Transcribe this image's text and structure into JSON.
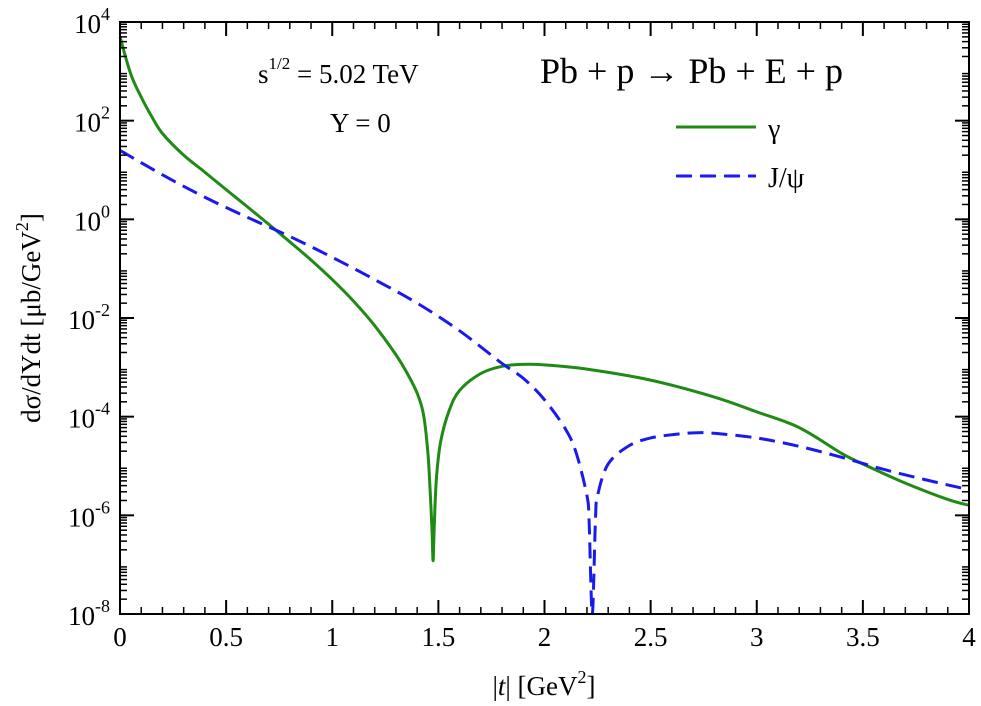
{
  "chart_data": {
    "type": "line",
    "ylog": true,
    "xlim": [
      0,
      4
    ],
    "ylim": [
      1e-08,
      10000.0
    ],
    "xticks": [
      {
        "v": 0,
        "label": "0"
      },
      {
        "v": 0.5,
        "label": "0.5"
      },
      {
        "v": 1,
        "label": "1"
      },
      {
        "v": 1.5,
        "label": "1.5"
      },
      {
        "v": 2,
        "label": "2"
      },
      {
        "v": 2.5,
        "label": "2.5"
      },
      {
        "v": 3,
        "label": "3"
      },
      {
        "v": 3.5,
        "label": "3.5"
      },
      {
        "v": 4,
        "label": "4"
      }
    ],
    "yticks": [
      {
        "exp": 4,
        "base": "10",
        "sup": "4"
      },
      {
        "exp": 2,
        "base": "10",
        "sup": "2"
      },
      {
        "exp": 0,
        "base": "10",
        "sup": "0"
      },
      {
        "exp": -2,
        "base": "10",
        "sup": "-2"
      },
      {
        "exp": -4,
        "base": "10",
        "sup": "-4"
      },
      {
        "exp": -6,
        "base": "10",
        "sup": "-6"
      },
      {
        "exp": -8,
        "base": "10",
        "sup": "-8"
      }
    ],
    "xlabel": {
      "pre": "|",
      "italic": "t",
      "mid": "| [GeV",
      "sup": "2",
      "post": "]"
    },
    "ylabel": {
      "main": "dσ/dYdt [μb/GeV",
      "sup": "2",
      "post": "]"
    },
    "annotations": {
      "energy": {
        "pre": "s",
        "sup": "1/2",
        "post": " = 5.02 TeV"
      },
      "rapidity": "Y = 0",
      "process": "Pb + p → Pb + E + p"
    },
    "grid": false,
    "legend_position": "top-right",
    "series": [
      {
        "name": "γ",
        "color": "#1f8a14",
        "dash": "solid",
        "points": [
          [
            0,
            5000
          ],
          [
            0.05,
            900
          ],
          [
            0.1,
            300
          ],
          [
            0.15,
            120
          ],
          [
            0.2,
            55
          ],
          [
            0.3,
            20
          ],
          [
            0.4,
            9
          ],
          [
            0.5,
            4
          ],
          [
            0.6,
            1.8
          ],
          [
            0.7,
            0.8
          ],
          [
            0.8,
            0.35
          ],
          [
            0.9,
            0.15
          ],
          [
            1.0,
            0.06
          ],
          [
            1.1,
            0.022
          ],
          [
            1.2,
            0.007
          ],
          [
            1.3,
            0.0018
          ],
          [
            1.35,
            0.0008
          ],
          [
            1.4,
            0.0003
          ],
          [
            1.43,
            0.00011
          ],
          [
            1.45,
            2e-05
          ],
          [
            1.46,
            4e-06
          ],
          [
            1.47,
            5e-07
          ],
          [
            1.475,
            1.2e-07
          ],
          [
            1.48,
            5e-07
          ],
          [
            1.49,
            5e-06
          ],
          [
            1.51,
            3e-05
          ],
          [
            1.55,
            0.00013
          ],
          [
            1.6,
            0.00034
          ],
          [
            1.7,
            0.00075
          ],
          [
            1.8,
            0.00105
          ],
          [
            1.9,
            0.00115
          ],
          [
            2.0,
            0.00112
          ],
          [
            2.2,
            0.00092
          ],
          [
            2.5,
            0.00055
          ],
          [
            2.8,
            0.00025
          ],
          [
            3.0,
            0.000125
          ],
          [
            3.2,
            6e-05
          ],
          [
            3.4,
            1.8e-05
          ],
          [
            3.5,
            1.1e-05
          ],
          [
            3.7,
            4.5e-06
          ],
          [
            3.9,
            2.1e-06
          ],
          [
            4.0,
            1.6e-06
          ]
        ]
      },
      {
        "name": "J/ψ",
        "color": "#1a1aee",
        "dash": "dashed",
        "points": [
          [
            0,
            25
          ],
          [
            0.2,
            8
          ],
          [
            0.4,
            2.8
          ],
          [
            0.6,
            1.1
          ],
          [
            0.8,
            0.45
          ],
          [
            1.0,
            0.17
          ],
          [
            1.2,
            0.06
          ],
          [
            1.4,
            0.02
          ],
          [
            1.6,
            0.0055
          ],
          [
            1.8,
            0.0012
          ],
          [
            1.9,
            0.0006
          ],
          [
            2.0,
            0.00022
          ],
          [
            2.1,
            5.5e-05
          ],
          [
            2.15,
            1.8e-05
          ],
          [
            2.2,
            2.5e-06
          ],
          [
            2.21,
            8e-07
          ],
          [
            2.225,
            1e-08
          ],
          [
            2.24,
            8e-07
          ],
          [
            2.25,
            2.5e-06
          ],
          [
            2.3,
            1.1e-05
          ],
          [
            2.4,
            2.6e-05
          ],
          [
            2.5,
            3.7e-05
          ],
          [
            2.6,
            4.3e-05
          ],
          [
            2.7,
            4.7e-05
          ],
          [
            2.8,
            4.6e-05
          ],
          [
            3.0,
            3.7e-05
          ],
          [
            3.2,
            2.5e-05
          ],
          [
            3.4,
            1.5e-05
          ],
          [
            3.6,
            8.5e-06
          ],
          [
            3.8,
            5.2e-06
          ],
          [
            4.0,
            3.3e-06
          ]
        ]
      }
    ]
  }
}
